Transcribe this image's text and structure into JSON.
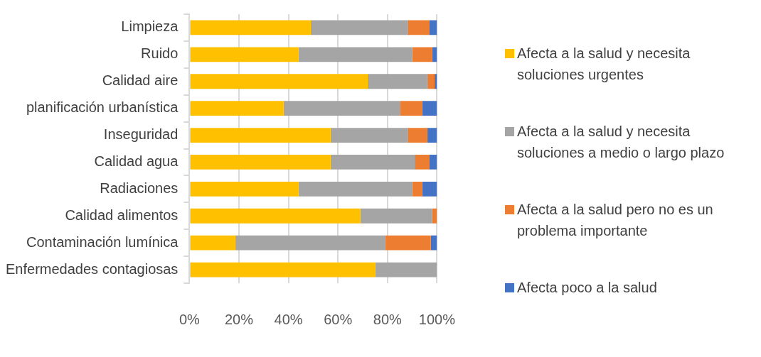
{
  "chart_data": {
    "type": "bar",
    "orientation": "horizontal",
    "stacked": true,
    "categories": [
      "Limpieza",
      "Ruido",
      "Calidad aire",
      "planificación urbanística",
      "Inseguridad",
      "Calidad agua",
      "Radiaciones",
      "Calidad alimentos",
      "Contaminación lumínica",
      "Enfermedades contagiosas"
    ],
    "series": [
      {
        "name": "Afecta a la salud y necesita soluciones urgentes",
        "color": "#ffc000",
        "values": [
          49,
          44,
          72,
          38,
          57,
          57,
          44,
          69,
          18.5,
          75
        ]
      },
      {
        "name": "Afecta a la salud y necesita soluciones a medio o largo plazo",
        "color": "#a5a5a5",
        "values": [
          39,
          46,
          24,
          47,
          31,
          34,
          46,
          29,
          60.5,
          25
        ]
      },
      {
        "name": "Afecta a la salud pero no es un problema importante",
        "color": "#ed7d31",
        "values": [
          9,
          8,
          3,
          9,
          8,
          6,
          4,
          2,
          18.5,
          0
        ]
      },
      {
        "name": "Afecta poco a la salud",
        "color": "#4472c4",
        "values": [
          3,
          2,
          1,
          6,
          4,
          3,
          6,
          0,
          2.5,
          0
        ]
      }
    ],
    "xlim": [
      0,
      100
    ],
    "xticks": [
      {
        "value": 0,
        "label": "0%"
      },
      {
        "value": 20,
        "label": "20%"
      },
      {
        "value": 40,
        "label": "40%"
      },
      {
        "value": 60,
        "label": "60%"
      },
      {
        "value": 80,
        "label": "80%"
      },
      {
        "value": 100,
        "label": "100%"
      }
    ],
    "grid": "x",
    "legend": "right"
  }
}
